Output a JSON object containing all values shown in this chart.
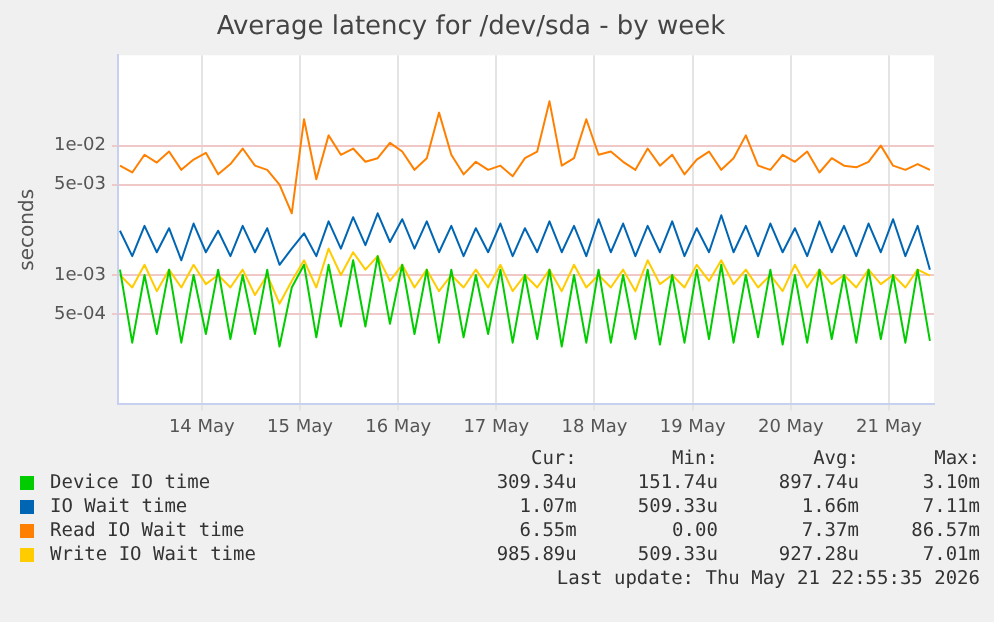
{
  "chart_data": {
    "type": "line",
    "title": "Average latency for /dev/sda - by week",
    "ylabel": "seconds",
    "x": [
      "2026-05-13T16:00",
      "2026-05-13T19:00",
      "2026-05-13T22:00",
      "2026-05-14T01:00",
      "2026-05-14T04:00",
      "2026-05-14T07:00",
      "2026-05-14T10:00",
      "2026-05-14T13:00",
      "2026-05-14T16:00",
      "2026-05-14T19:00",
      "2026-05-14T22:00",
      "2026-05-15T01:00",
      "2026-05-15T04:00",
      "2026-05-15T07:00",
      "2026-05-15T10:00",
      "2026-05-15T13:00",
      "2026-05-15T16:00",
      "2026-05-15T19:00",
      "2026-05-15T22:00",
      "2026-05-16T01:00",
      "2026-05-16T04:00",
      "2026-05-16T07:00",
      "2026-05-16T10:00",
      "2026-05-16T13:00",
      "2026-05-16T16:00",
      "2026-05-16T19:00",
      "2026-05-16T22:00",
      "2026-05-17T01:00",
      "2026-05-17T04:00",
      "2026-05-17T07:00",
      "2026-05-17T10:00",
      "2026-05-17T13:00",
      "2026-05-17T16:00",
      "2026-05-17T19:00",
      "2026-05-17T22:00",
      "2026-05-18T01:00",
      "2026-05-18T04:00",
      "2026-05-18T07:00",
      "2026-05-18T10:00",
      "2026-05-18T13:00",
      "2026-05-18T16:00",
      "2026-05-18T19:00",
      "2026-05-18T22:00",
      "2026-05-19T01:00",
      "2026-05-19T04:00",
      "2026-05-19T07:00",
      "2026-05-19T10:00",
      "2026-05-19T13:00",
      "2026-05-19T16:00",
      "2026-05-19T19:00",
      "2026-05-19T22:00",
      "2026-05-20T01:00",
      "2026-05-20T04:00",
      "2026-05-20T07:00",
      "2026-05-20T10:00",
      "2026-05-20T13:00",
      "2026-05-20T16:00",
      "2026-05-20T19:00",
      "2026-05-20T22:00",
      "2026-05-21T01:00",
      "2026-05-21T04:00",
      "2026-05-21T07:00",
      "2026-05-21T10:00",
      "2026-05-21T13:00",
      "2026-05-21T16:00",
      "2026-05-21T19:00",
      "2026-05-21T22:00"
    ],
    "series": [
      {
        "name": "Device IO time",
        "color": "#00cc00",
        "values": [
          0.0011,
          0.0003,
          0.001,
          0.00035,
          0.0011,
          0.0003,
          0.001,
          0.00035,
          0.0011,
          0.00032,
          0.001,
          0.00035,
          0.0011,
          0.00028,
          0.0008,
          0.0012,
          0.00033,
          0.0012,
          0.0004,
          0.0013,
          0.0004,
          0.0014,
          0.00042,
          0.0012,
          0.00035,
          0.0011,
          0.0003,
          0.0011,
          0.00033,
          0.001,
          0.00035,
          0.0011,
          0.0003,
          0.001,
          0.00032,
          0.0011,
          0.00028,
          0.001,
          0.0003,
          0.0011,
          0.0003,
          0.001,
          0.00032,
          0.0011,
          0.00029,
          0.001,
          0.0003,
          0.0011,
          0.00032,
          0.0012,
          0.0003,
          0.001,
          0.00033,
          0.0011,
          0.00029,
          0.001,
          0.0003,
          0.0011,
          0.00032,
          0.001,
          0.0003,
          0.0011,
          0.00032,
          0.001,
          0.0003,
          0.0011,
          0.00031
        ]
      },
      {
        "name": "IO Wait time",
        "color": "#0066b3",
        "values": [
          0.0022,
          0.0014,
          0.0024,
          0.0015,
          0.0023,
          0.0013,
          0.0025,
          0.0015,
          0.0022,
          0.0014,
          0.0024,
          0.0015,
          0.0023,
          0.0012,
          0.0016,
          0.0021,
          0.0014,
          0.0026,
          0.0016,
          0.0028,
          0.0017,
          0.003,
          0.0018,
          0.0027,
          0.0016,
          0.0026,
          0.0015,
          0.0024,
          0.0014,
          0.0023,
          0.0015,
          0.0025,
          0.0014,
          0.0023,
          0.0015,
          0.0026,
          0.0015,
          0.0024,
          0.0014,
          0.0027,
          0.0015,
          0.0025,
          0.0014,
          0.0024,
          0.0015,
          0.0026,
          0.0014,
          0.0023,
          0.0015,
          0.0029,
          0.0015,
          0.0024,
          0.0014,
          0.0025,
          0.0015,
          0.0023,
          0.0014,
          0.0026,
          0.0015,
          0.0024,
          0.0014,
          0.0025,
          0.0015,
          0.0027,
          0.0014,
          0.0024,
          0.0011
        ]
      },
      {
        "name": "Read IO Wait time",
        "color": "#ff8000",
        "values": [
          0.007,
          0.0062,
          0.0085,
          0.0074,
          0.009,
          0.0065,
          0.0078,
          0.0088,
          0.006,
          0.0072,
          0.0095,
          0.007,
          0.0065,
          0.005,
          0.003,
          0.016,
          0.0055,
          0.012,
          0.0085,
          0.0095,
          0.0075,
          0.008,
          0.0105,
          0.009,
          0.0065,
          0.008,
          0.018,
          0.0085,
          0.006,
          0.0075,
          0.0065,
          0.007,
          0.0058,
          0.008,
          0.009,
          0.022,
          0.007,
          0.008,
          0.016,
          0.0085,
          0.009,
          0.0075,
          0.0065,
          0.0095,
          0.007,
          0.0085,
          0.006,
          0.0078,
          0.009,
          0.0065,
          0.008,
          0.012,
          0.007,
          0.0065,
          0.0085,
          0.0075,
          0.009,
          0.0062,
          0.008,
          0.007,
          0.0068,
          0.0075,
          0.01,
          0.007,
          0.0065,
          0.0072,
          0.0065
        ]
      },
      {
        "name": "Write IO Wait time",
        "color": "#ffcc00",
        "values": [
          0.001,
          0.0008,
          0.0012,
          0.00075,
          0.0011,
          0.0008,
          0.0012,
          0.00085,
          0.001,
          0.0008,
          0.0011,
          0.0007,
          0.001,
          0.0006,
          0.0009,
          0.0013,
          0.0008,
          0.0016,
          0.001,
          0.0015,
          0.0011,
          0.0014,
          0.0009,
          0.0012,
          0.0008,
          0.0011,
          0.00075,
          0.001,
          0.0008,
          0.0011,
          0.0008,
          0.0012,
          0.00075,
          0.001,
          0.0008,
          0.0011,
          0.00075,
          0.0012,
          0.0008,
          0.001,
          0.0008,
          0.0011,
          0.00075,
          0.0013,
          0.00085,
          0.001,
          0.0008,
          0.0012,
          0.0009,
          0.0013,
          0.00085,
          0.0011,
          0.0008,
          0.001,
          0.00075,
          0.0012,
          0.0008,
          0.0011,
          0.00085,
          0.001,
          0.0008,
          0.0011,
          0.00085,
          0.001,
          0.0008,
          0.0011,
          0.00099
        ]
      }
    ],
    "xlim": [
      "2026-05-13T15:30",
      "2026-05-21T23:00"
    ],
    "xticks": [
      {
        "value": "2026-05-14T12:00",
        "label": "14 May"
      },
      {
        "value": "2026-05-15T12:00",
        "label": "15 May"
      },
      {
        "value": "2026-05-16T12:00",
        "label": "16 May"
      },
      {
        "value": "2026-05-17T12:00",
        "label": "17 May"
      },
      {
        "value": "2026-05-18T12:00",
        "label": "18 May"
      },
      {
        "value": "2026-05-19T12:00",
        "label": "19 May"
      },
      {
        "value": "2026-05-20T12:00",
        "label": "20 May"
      },
      {
        "value": "2026-05-21T12:00",
        "label": "21 May"
      }
    ],
    "ylim": [
      0.0001,
      0.05
    ],
    "yticks": [
      {
        "value": 0.0005,
        "label": "5e-04"
      },
      {
        "value": 0.001,
        "label": "1e-03"
      },
      {
        "value": 0.005,
        "label": "5e-03"
      },
      {
        "value": 0.01,
        "label": "1e-02"
      }
    ],
    "log": "y",
    "grid": true,
    "legend": "bottom",
    "marker": "none",
    "line_style": "solid",
    "annotations": [
      "Cur:",
      "Min:",
      "Avg:",
      "Max:",
      "309.34u",
      "151.74u",
      "897.74u",
      "3.10m",
      "1.07m",
      "509.33u",
      "1.66m",
      "7.11m",
      "6.55m",
      "0.00",
      "7.37m",
      "86.57m",
      "985.89u",
      "509.33u",
      "927.28u",
      "7.01m",
      "Last update: Thu May 21 22:55:35 2026"
    ]
  }
}
